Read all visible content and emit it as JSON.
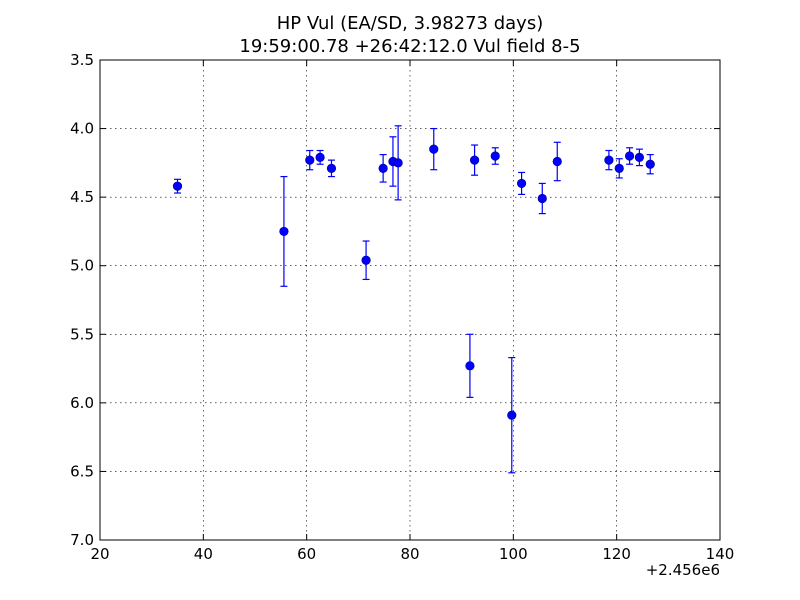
{
  "chart_data": {
    "type": "scatter",
    "title": "HP Vul (EA/SD, 3.98273 days)",
    "subtitle": "19:59:00.78 +26:42:12.0 Vul field 8-5",
    "xlabel": "",
    "ylabel": "",
    "x_offset_label": "+2.456e6",
    "xlim": [
      20,
      140
    ],
    "ylim": [
      7.0,
      3.5
    ],
    "y_inverted": true,
    "grid": true,
    "marker_color": "#0000ff",
    "x_ticks": [
      "20",
      "40",
      "60",
      "80",
      "100",
      "120",
      "140"
    ],
    "y_ticks": [
      "3.5",
      "4.0",
      "4.5",
      "5.0",
      "5.5",
      "6.0",
      "6.5",
      "7.0"
    ],
    "series": [
      {
        "points": [
          {
            "x": 35.0,
            "y": 4.42,
            "err": 0.05
          },
          {
            "x": 55.6,
            "y": 4.75,
            "err": 0.4
          },
          {
            "x": 60.6,
            "y": 4.23,
            "err": 0.07
          },
          {
            "x": 62.6,
            "y": 4.21,
            "err": 0.05
          },
          {
            "x": 64.8,
            "y": 4.29,
            "err": 0.06
          },
          {
            "x": 71.5,
            "y": 4.96,
            "err": 0.14
          },
          {
            "x": 74.8,
            "y": 4.29,
            "err": 0.1
          },
          {
            "x": 76.7,
            "y": 4.24,
            "err": 0.18
          },
          {
            "x": 77.7,
            "y": 4.25,
            "err": 0.27
          },
          {
            "x": 84.6,
            "y": 4.15,
            "err": 0.15
          },
          {
            "x": 91.6,
            "y": 5.73,
            "err": 0.23
          },
          {
            "x": 92.5,
            "y": 4.23,
            "err": 0.11
          },
          {
            "x": 96.5,
            "y": 4.2,
            "err": 0.06
          },
          {
            "x": 99.7,
            "y": 6.09,
            "err": 0.42
          },
          {
            "x": 101.6,
            "y": 4.4,
            "err": 0.08
          },
          {
            "x": 105.6,
            "y": 4.51,
            "err": 0.11
          },
          {
            "x": 108.5,
            "y": 4.24,
            "err": 0.14
          },
          {
            "x": 118.5,
            "y": 4.23,
            "err": 0.07
          },
          {
            "x": 120.5,
            "y": 4.29,
            "err": 0.07
          },
          {
            "x": 122.5,
            "y": 4.2,
            "err": 0.06
          },
          {
            "x": 124.4,
            "y": 4.21,
            "err": 0.06
          },
          {
            "x": 126.5,
            "y": 4.26,
            "err": 0.07
          }
        ]
      }
    ]
  }
}
